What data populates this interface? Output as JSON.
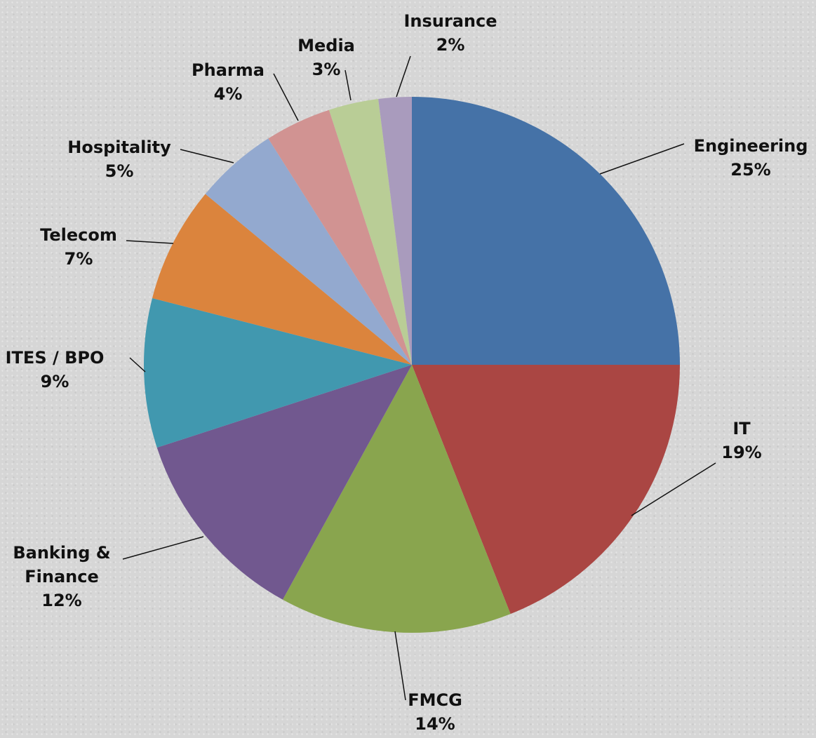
{
  "chart_data": {
    "type": "pie",
    "categories": [
      "Engineering",
      "IT",
      "FMCG",
      "Banking & Finance",
      "ITES / BPO",
      "Telecom",
      "Hospitality",
      "Pharma",
      "Media",
      "Insurance"
    ],
    "values": [
      25,
      19,
      14,
      12,
      9,
      7,
      5,
      4,
      3,
      2
    ],
    "value_labels": [
      "25%",
      "19%",
      "14%",
      "12%",
      "9%",
      "7%",
      "5%",
      "4%",
      "3%",
      "2%"
    ],
    "colors": [
      "#4572a7",
      "#aa4643",
      "#89a54e",
      "#71588f",
      "#4198af",
      "#db843d",
      "#93a9cf",
      "#d19392",
      "#b9cd96",
      "#a99bbd"
    ]
  }
}
